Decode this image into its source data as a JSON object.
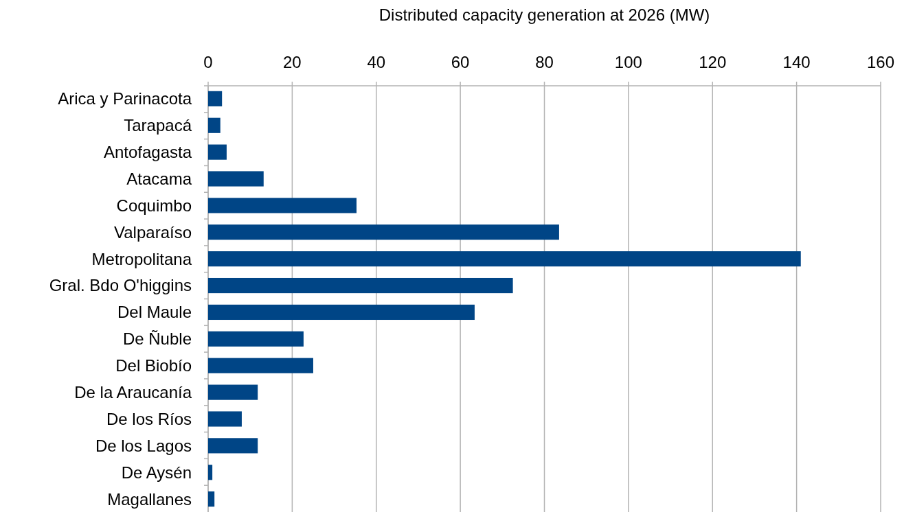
{
  "chart_data": {
    "type": "bar",
    "orientation": "horizontal",
    "title": "Distributed capacity generation at 2026 (MW)",
    "categories": [
      "Arica y Parinacota",
      "Tarapacá",
      "Antofagasta",
      "Atacama",
      "Coquimbo",
      "Valparaíso",
      "Metropolitana",
      "Gral. Bdo O'higgins",
      "Del Maule",
      "De Ñuble",
      "Del Biobío",
      "De la Araucanía",
      "De los Ríos",
      "De los Lagos",
      "De Aysén",
      "Magallanes"
    ],
    "values": [
      3.3,
      2.9,
      4.4,
      13.2,
      35.3,
      83.5,
      141,
      72.5,
      63.4,
      22.7,
      25,
      11.8,
      8,
      11.8,
      1,
      1.5
    ],
    "color": "#004586",
    "xlim": [
      0,
      160
    ],
    "xticks": [
      0,
      20,
      40,
      60,
      80,
      100,
      120,
      140,
      160
    ],
    "grid": "x"
  }
}
